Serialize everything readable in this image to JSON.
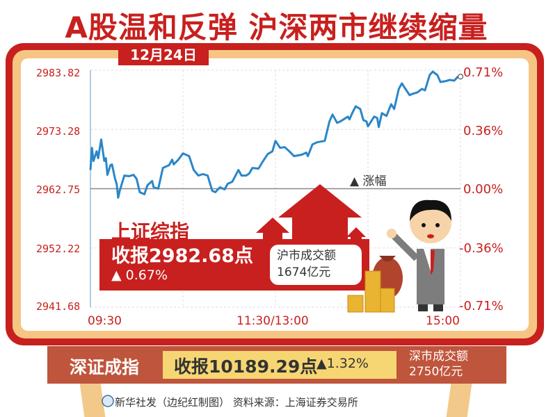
{
  "title": "A股温和反弹  沪深两市继续缩量",
  "date": "12月24日",
  "colors": {
    "title_red": "#c8201e",
    "line_blue": "#2a86c8",
    "frame_peach": "#f6c584",
    "sz_bar": "#bf553c",
    "sz_box": "#f6d673"
  },
  "chart_data": {
    "type": "line",
    "title": "",
    "xlabel": "",
    "ylabel": "",
    "ylim": [
      2941.68,
      2983.82
    ],
    "y_ticks": [
      "2983.82",
      "2973.28",
      "2962.75",
      "2952.22",
      "2941.68"
    ],
    "y2_ticks": [
      "0.71%",
      "0.36%",
      "0.00%",
      "-0.36%",
      "-0.71%"
    ],
    "x_ticks": [
      "09:30",
      "11:30/13:00",
      "15:00"
    ],
    "grid": true,
    "legend": {
      "label": "▲ 涨幅",
      "placement": "center-right"
    },
    "x": [
      "09:30",
      "09:31",
      "09:32",
      "09:34",
      "09:35",
      "09:37",
      "09:39",
      "09:40",
      "09:41",
      "09:43",
      "09:44",
      "09:46",
      "09:47",
      "09:48",
      "09:49",
      "09:52",
      "09:55",
      "09:58",
      "10:00",
      "10:02",
      "10:05",
      "10:07",
      "10:10",
      "10:11",
      "10:14",
      "10:17",
      "10:21",
      "10:23",
      "10:24",
      "10:27",
      "10:30",
      "10:34",
      "10:37",
      "10:40",
      "10:43",
      "10:46",
      "10:49",
      "10:51",
      "10:54",
      "10:57",
      "10:59",
      "11:02",
      "11:06",
      "11:08",
      "11:11",
      "11:13",
      "11:15",
      "11:19",
      "11:22",
      "11:25",
      "11:28",
      "11:30",
      "13:03",
      "13:06",
      "13:09",
      "13:12",
      "13:17",
      "13:20",
      "13:21",
      "13:24",
      "13:27",
      "13:32",
      "13:35",
      "13:37",
      "13:40",
      "13:42",
      "13:47",
      "13:48",
      "13:50",
      "13:52",
      "13:55",
      "13:57",
      "13:59",
      "14:00",
      "14:04",
      "14:06",
      "14:07",
      "14:09",
      "14:12",
      "14:15",
      "14:17",
      "14:20",
      "14:22",
      "14:24",
      "14:27",
      "14:29",
      "14:32",
      "14:35",
      "14:37",
      "14:40",
      "14:42",
      "14:45",
      "14:47",
      "14:50",
      "14:53",
      "14:56",
      "14:58",
      "15:00"
    ],
    "values": [
      2966.08,
      2970.02,
      2967.68,
      2969.4,
      2968.17,
      2971.5,
      2967.68,
      2968.17,
      2965.21,
      2966.94,
      2967.06,
      2964.47,
      2963.61,
      2961.15,
      2962.38,
      2965.09,
      2964.97,
      2965.21,
      2964.47,
      2962.13,
      2961.76,
      2963.37,
      2964.11,
      2963.0,
      2962.75,
      2966.45,
      2966.94,
      2967.92,
      2967.06,
      2967.92,
      2969.03,
      2968.54,
      2966.08,
      2965.09,
      2965.34,
      2965.09,
      2962.38,
      2962.13,
      2963.0,
      2962.63,
      2963.61,
      2963.98,
      2966.08,
      2965.09,
      2965.09,
      2965.46,
      2966.45,
      2966.32,
      2967.68,
      2968.91,
      2969.4,
      2971.25,
      2970.02,
      2970.14,
      2969.4,
      2968.54,
      2968.79,
      2969.16,
      2968.54,
      2970.63,
      2971.0,
      2971.25,
      2974.7,
      2975.93,
      2974.45,
      2974.7,
      2975.56,
      2975.07,
      2976.3,
      2977.41,
      2976.92,
      2974.95,
      2974.7,
      2973.84,
      2975.56,
      2975.32,
      2973.71,
      2976.18,
      2975.69,
      2977.78,
      2976.92,
      2980.49,
      2981.48,
      2980.61,
      2979.38,
      2979.63,
      2979.87,
      2980.49,
      2980.24,
      2982.95,
      2983.57,
      2982.95,
      2981.72,
      2981.85,
      2982.09,
      2981.97,
      2982.59,
      2982.68
    ]
  },
  "shanghai": {
    "name": "上证综指",
    "close": "收报2982.68点",
    "change": "▲ 0.67%",
    "volume_label": "沪市成交额",
    "volume": "1674亿元"
  },
  "shenzhen": {
    "name": "深证成指",
    "close": "收报10189.29点",
    "change": "▲1.32%",
    "volume_label": "深市成交额",
    "volume": "2750亿元"
  },
  "footer": {
    "text": "新华社发（边纪红制图）  资料来源：上海证券交易所"
  }
}
